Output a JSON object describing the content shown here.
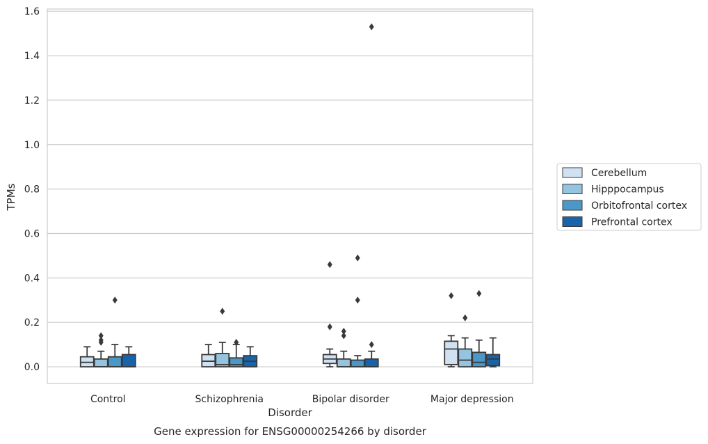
{
  "chart_data": {
    "type": "box",
    "categories": [
      "Control",
      "Schizophrenia",
      "Bipolar disorder",
      "Major depression"
    ],
    "xlabel": "Disorder",
    "ylabel": "TPMs",
    "caption": "Gene expression for ENSG00000254266 by disorder",
    "ylim": [
      -0.075,
      1.61
    ],
    "yticks": [
      "0.0",
      "0.2",
      "0.4",
      "0.6",
      "0.8",
      "1.0",
      "1.2",
      "1.4",
      "1.6"
    ],
    "grid": "horizontal",
    "legend_placement": "right",
    "series": [
      {
        "name": "Cerebellum",
        "color": "#d0e1f2",
        "boxes": [
          {
            "whisker_low": 0.0,
            "q1": 0.0,
            "median": 0.02,
            "q3": 0.045,
            "whisker_high": 0.09,
            "outliers": []
          },
          {
            "whisker_low": 0.0,
            "q1": 0.0,
            "median": 0.025,
            "q3": 0.055,
            "whisker_high": 0.1,
            "outliers": []
          },
          {
            "whisker_low": 0.0,
            "q1": 0.015,
            "median": 0.035,
            "q3": 0.055,
            "whisker_high": 0.08,
            "outliers": [
              0.18,
              0.46
            ]
          },
          {
            "whisker_low": 0.0,
            "q1": 0.01,
            "median": 0.08,
            "q3": 0.115,
            "whisker_high": 0.14,
            "outliers": [
              0.32
            ]
          }
        ]
      },
      {
        "name": "Hipppocampus",
        "color": "#94c4df",
        "boxes": [
          {
            "whisker_low": 0.0,
            "q1": 0.0,
            "median": 0.0,
            "q3": 0.035,
            "whisker_high": 0.07,
            "outliers": [
              0.11,
              0.12,
              0.14
            ]
          },
          {
            "whisker_low": 0.0,
            "q1": 0.0,
            "median": 0.01,
            "q3": 0.06,
            "whisker_high": 0.11,
            "outliers": [
              0.25
            ]
          },
          {
            "whisker_low": 0.0,
            "q1": 0.0,
            "median": 0.0,
            "q3": 0.035,
            "whisker_high": 0.07,
            "outliers": [
              0.14,
              0.16
            ]
          },
          {
            "whisker_low": 0.0,
            "q1": 0.0,
            "median": 0.03,
            "q3": 0.08,
            "whisker_high": 0.13,
            "outliers": [
              0.22
            ]
          }
        ]
      },
      {
        "name": "Orbitofrontal cortex",
        "color": "#4a98c9",
        "boxes": [
          {
            "whisker_low": 0.0,
            "q1": 0.0,
            "median": 0.0,
            "q3": 0.045,
            "whisker_high": 0.1,
            "outliers": [
              0.3
            ]
          },
          {
            "whisker_low": 0.0,
            "q1": 0.0,
            "median": 0.01,
            "q3": 0.04,
            "whisker_high": 0.1,
            "outliers": [
              0.11
            ]
          },
          {
            "whisker_low": 0.0,
            "q1": 0.0,
            "median": 0.0,
            "q3": 0.03,
            "whisker_high": 0.05,
            "outliers": [
              0.3,
              0.49
            ]
          },
          {
            "whisker_low": 0.0,
            "q1": 0.0,
            "median": 0.02,
            "q3": 0.065,
            "whisker_high": 0.12,
            "outliers": [
              0.33
            ]
          }
        ]
      },
      {
        "name": "Prefrontal cortex",
        "color": "#1764ab",
        "boxes": [
          {
            "whisker_low": 0.0,
            "q1": 0.0,
            "median": 0.0,
            "q3": 0.055,
            "whisker_high": 0.09,
            "outliers": []
          },
          {
            "whisker_low": 0.0,
            "q1": 0.0,
            "median": 0.025,
            "q3": 0.05,
            "whisker_high": 0.09,
            "outliers": []
          },
          {
            "whisker_low": 0.0,
            "q1": 0.0,
            "median": 0.0,
            "q3": 0.035,
            "whisker_high": 0.07,
            "outliers": [
              0.1,
              1.53
            ]
          },
          {
            "whisker_low": 0.0,
            "q1": 0.005,
            "median": 0.035,
            "q3": 0.055,
            "whisker_high": 0.13,
            "outliers": []
          }
        ]
      }
    ]
  }
}
